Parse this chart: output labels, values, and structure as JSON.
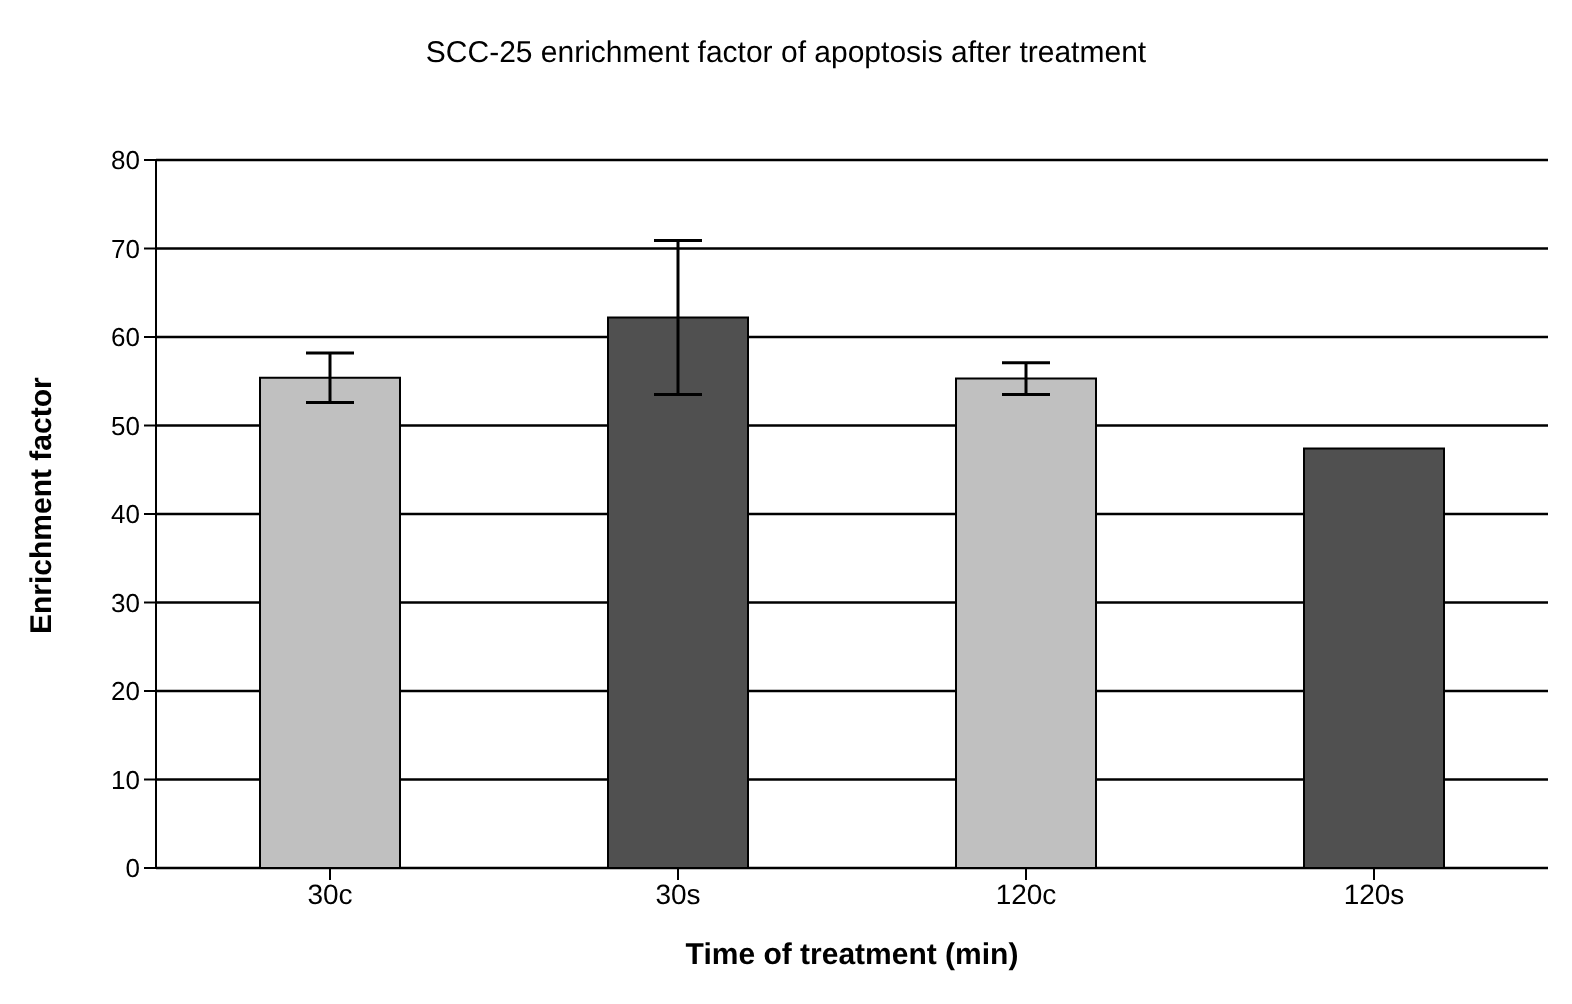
{
  "chart_data": {
    "type": "bar",
    "title": "SCC-25 enrichment factor of apoptosis after treatment",
    "xlabel": "Time of treatment (min)",
    "ylabel": "Enrichment factor",
    "categories": [
      "30c",
      "30s",
      "120c",
      "120s"
    ],
    "values": [
      55.4,
      62.2,
      55.3,
      47.4
    ],
    "errors": [
      2.8,
      8.7,
      1.8,
      null
    ],
    "colors": [
      "#c0c0c0",
      "#505050",
      "#c0c0c0",
      "#505050"
    ],
    "ylim": [
      0,
      80
    ],
    "yticks": [
      0,
      10,
      20,
      30,
      40,
      50,
      60,
      70,
      80
    ],
    "grid": "y",
    "legend": false
  }
}
